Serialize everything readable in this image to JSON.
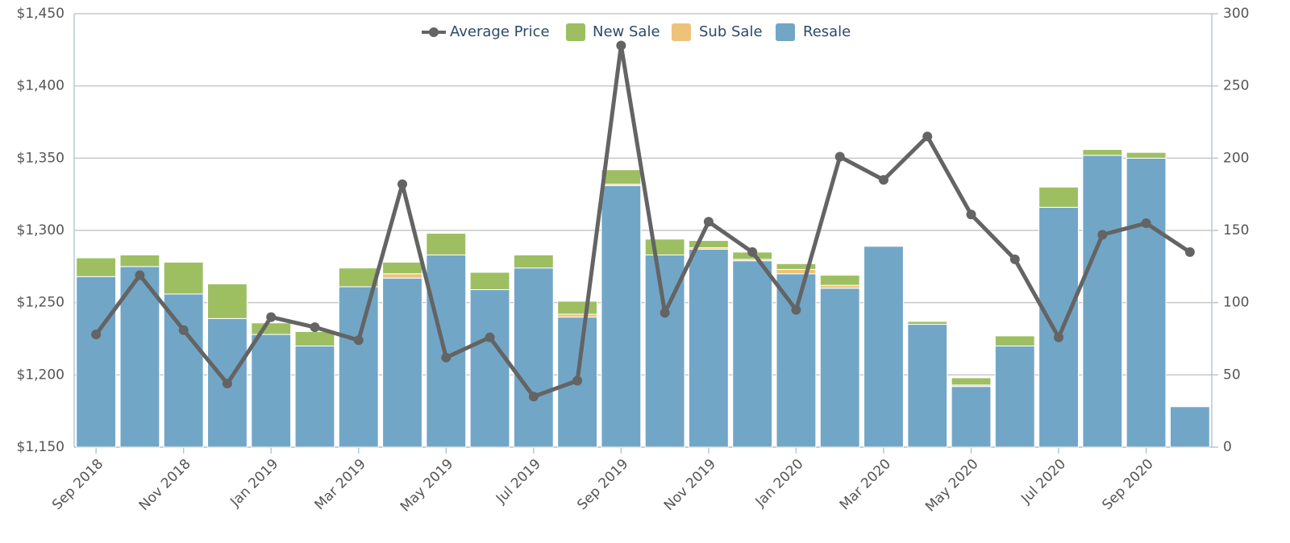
{
  "chart_data": {
    "type": "bar",
    "categories": [
      "Sep 2018",
      null,
      "Nov 2018",
      null,
      "Jan 2019",
      null,
      "Mar 2019",
      null,
      "May 2019",
      null,
      "Jul 2019",
      null,
      "Sep 2019",
      null,
      "Nov 2019",
      null,
      "Jan 2020",
      null,
      "Mar 2020",
      null,
      "May 2020",
      null,
      "Jul 2020",
      null,
      "Sep 2020",
      null
    ],
    "series": [
      {
        "name": "Average Price",
        "type": "line",
        "axis": "y",
        "color": "#646464",
        "values": [
          1228,
          1269,
          1231,
          1194,
          1240,
          1233,
          1224,
          1332,
          1212,
          1226,
          1185,
          1196,
          1428,
          1243,
          1306,
          1285,
          1245,
          1351,
          1335,
          1365,
          1311,
          1280,
          1226,
          1297,
          1305,
          1285
        ]
      },
      {
        "name": "New Sale",
        "type": "bar",
        "axis": "y2",
        "color": "#9dbf62",
        "values": [
          13,
          8,
          22,
          24,
          8,
          10,
          13,
          8,
          15,
          12,
          9,
          9,
          10,
          11,
          5,
          5,
          4,
          7,
          0,
          2,
          5,
          7,
          14,
          4,
          4,
          0
        ]
      },
      {
        "name": "Sub Sale",
        "type": "bar",
        "axis": "y2",
        "color": "#efc27a",
        "values": [
          0,
          0,
          0,
          0,
          0,
          0,
          0,
          3,
          0,
          0,
          0,
          2,
          1,
          0,
          1,
          1,
          3,
          2,
          0,
          0,
          1,
          0,
          0,
          0,
          0,
          0
        ]
      },
      {
        "name": "Resale",
        "type": "bar",
        "axis": "y2",
        "color": "#72a6c7",
        "values": [
          118,
          125,
          106,
          89,
          78,
          70,
          111,
          117,
          133,
          109,
          124,
          90,
          181,
          133,
          137,
          129,
          120,
          110,
          139,
          85,
          42,
          70,
          166,
          202,
          200,
          28
        ]
      }
    ],
    "ylim": [
      1150,
      1450
    ],
    "yticks": [
      {
        "value": 1150,
        "label": "$1,150"
      },
      {
        "value": 1200,
        "label": "$1,200"
      },
      {
        "value": 1250,
        "label": "$1,250"
      },
      {
        "value": 1300,
        "label": "$1,300"
      },
      {
        "value": 1350,
        "label": "$1,350"
      },
      {
        "value": 1400,
        "label": "$1,400"
      },
      {
        "value": 1450,
        "label": "$1,450"
      }
    ],
    "y2lim": [
      0,
      300
    ],
    "y2ticks": [
      0,
      50,
      100,
      150,
      200,
      250,
      300
    ],
    "grid": true,
    "legend": "top"
  }
}
